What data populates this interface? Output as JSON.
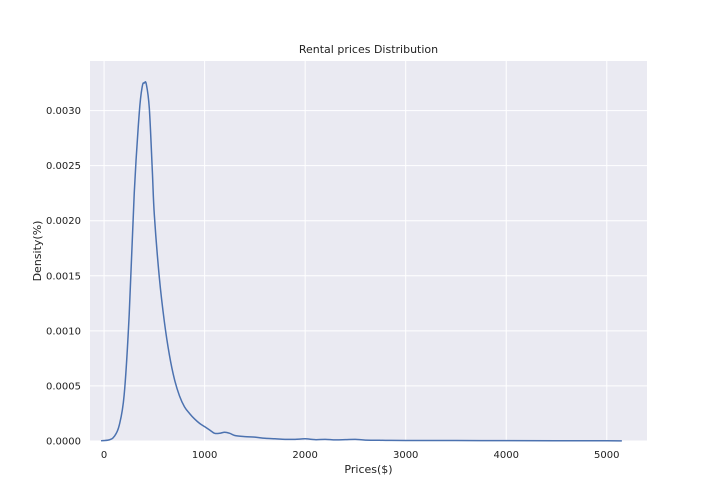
{
  "chart_data": {
    "type": "line",
    "title": "Rental prices Distribution",
    "xlabel": "Prices($)",
    "ylabel": "Density(%)",
    "xlim": [
      -140,
      5400
    ],
    "ylim": [
      0,
      0.00345
    ],
    "grid": true,
    "x_ticks": [
      0,
      1000,
      2000,
      3000,
      4000,
      5000
    ],
    "x_tick_labels": [
      "0",
      "1000",
      "2000",
      "3000",
      "4000",
      "5000"
    ],
    "y_ticks": [
      0,
      0.0005,
      0.001,
      0.0015,
      0.002,
      0.0025,
      0.003
    ],
    "y_tick_labels": [
      "0.0000",
      "0.0005",
      "0.0010",
      "0.0015",
      "0.0020",
      "0.0025",
      "0.0030"
    ],
    "colors": {
      "line": "#4c72b0",
      "plot_background": "#eaeaf2",
      "grid": "#ffffff"
    },
    "series": [
      {
        "x": [
          -30,
          50,
          100,
          150,
          200,
          250,
          300,
          350,
          380,
          400,
          420,
          450,
          480,
          500,
          550,
          600,
          650,
          700,
          750,
          800,
          850,
          900,
          950,
          1000,
          1050,
          1100,
          1150,
          1200,
          1250,
          1300,
          1400,
          1500,
          1600,
          1700,
          1800,
          1900,
          2000,
          2100,
          2200,
          2300,
          2400,
          2500,
          2600,
          2800,
          3000,
          3500,
          4000,
          4500,
          5000,
          5150
        ],
        "y": [
          2e-06,
          1e-05,
          4e-05,
          0.00014,
          0.00042,
          0.00115,
          0.00225,
          0.00298,
          0.00322,
          0.00325,
          0.00324,
          0.00302,
          0.00245,
          0.00205,
          0.00148,
          0.00108,
          0.00078,
          0.00056,
          0.00041,
          0.00031,
          0.00025,
          0.0002,
          0.00016,
          0.00013,
          0.0001,
          7e-05,
          7e-05,
          8e-05,
          7e-05,
          5e-05,
          4e-05,
          3.5e-05,
          2.5e-05,
          2e-05,
          1.5e-05,
          1.5e-05,
          2e-05,
          1.2e-05,
          1.5e-05,
          1e-05,
          1.2e-05,
          1.5e-05,
          8e-06,
          6e-06,
          5e-06,
          4e-06,
          3e-06,
          2e-06,
          2e-06,
          1e-06
        ]
      }
    ]
  }
}
